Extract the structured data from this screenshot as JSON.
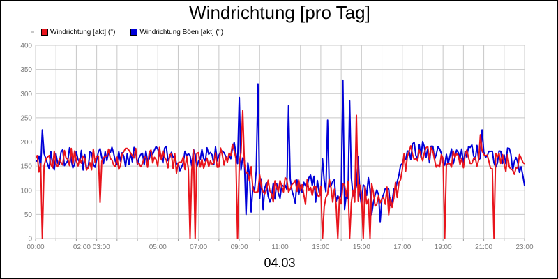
{
  "chart_data": {
    "type": "line",
    "title": "Windrichtung [pro Tag]",
    "date": "04.03",
    "xlabel": "",
    "ylabel": "",
    "ylim": [
      0,
      400
    ],
    "yticks": [
      "0",
      "50",
      "100",
      "150",
      "200",
      "250",
      "300",
      "350",
      "400"
    ],
    "xticks": [
      "00:00",
      "02:00 03:00",
      "05:00",
      "07:00",
      "09:00",
      "11:00",
      "13:00",
      "15:00",
      "17:00",
      "19:00",
      "21:00",
      "23:00"
    ],
    "grid": true,
    "legend_position": "top-left",
    "x_hours": [
      0,
      0.5,
      1,
      1.5,
      2,
      2.5,
      3,
      3.5,
      4,
      4.5,
      5,
      5.5,
      6,
      6.5,
      7,
      7.5,
      8,
      8.5,
      9,
      9.5,
      10,
      10.5,
      11,
      11.5,
      12,
      12.5,
      13,
      13.5,
      14,
      14.5,
      15,
      15.5,
      16,
      16.5,
      17,
      17.5,
      18,
      18.5,
      19,
      19.5,
      20,
      20.5,
      21,
      21.5,
      22,
      22.5,
      23,
      23.5,
      24
    ],
    "series": [
      {
        "name": "Windrichtung [akt] (°)",
        "color": "#e8141c",
        "values": [
          150,
          170,
          160,
          175,
          165,
          160,
          165,
          175,
          160,
          170,
          165,
          160,
          170,
          165,
          150,
          160,
          165,
          170,
          165,
          180,
          165,
          140,
          105,
          100,
          100,
          105,
          95,
          100,
          90,
          100,
          85,
          95,
          90,
          95,
          90,
          70,
          150,
          175,
          175,
          170,
          165,
          165,
          165,
          165,
          175,
          160,
          160,
          155,
          155
        ],
        "spikes": [
          {
            "x": 0.35,
            "y": 0
          },
          {
            "x": 3.2,
            "y": 75
          },
          {
            "x": 7.6,
            "y": 0
          },
          {
            "x": 7.85,
            "y": 0
          },
          {
            "x": 9.95,
            "y": 0
          },
          {
            "x": 10.15,
            "y": 265
          },
          {
            "x": 14.1,
            "y": 0
          },
          {
            "x": 14.8,
            "y": 0
          },
          {
            "x": 15.4,
            "y": 0
          },
          {
            "x": 15.75,
            "y": 255
          },
          {
            "x": 16.05,
            "y": 0
          },
          {
            "x": 16.4,
            "y": 0
          },
          {
            "x": 20.05,
            "y": 0
          },
          {
            "x": 21.85,
            "y": 215
          },
          {
            "x": 22.5,
            "y": 0
          }
        ]
      },
      {
        "name": "Windrichtung Böen [akt] (°)",
        "color": "#0000d8",
        "values": [
          145,
          165,
          160,
          170,
          165,
          160,
          165,
          180,
          160,
          170,
          165,
          160,
          175,
          170,
          155,
          165,
          170,
          175,
          165,
          185,
          170,
          130,
          110,
          95,
          95,
          110,
          90,
          105,
          95,
          110,
          90,
          100,
          95,
          100,
          85,
          75,
          155,
          180,
          185,
          175,
          170,
          170,
          170,
          175,
          185,
          165,
          170,
          160,
          115
        ],
        "spikes": [
          {
            "x": 0.3,
            "y": 225
          },
          {
            "x": 10.0,
            "y": 292
          },
          {
            "x": 10.3,
            "y": 50
          },
          {
            "x": 10.6,
            "y": 55
          },
          {
            "x": 10.95,
            "y": 320
          },
          {
            "x": 11.2,
            "y": 60
          },
          {
            "x": 12.45,
            "y": 275
          },
          {
            "x": 14.35,
            "y": 245
          },
          {
            "x": 14.1,
            "y": 165
          },
          {
            "x": 15.05,
            "y": 328
          },
          {
            "x": 15.4,
            "y": 285
          },
          {
            "x": 15.15,
            "y": 60
          },
          {
            "x": 15.85,
            "y": 170
          },
          {
            "x": 16.5,
            "y": 50
          },
          {
            "x": 16.95,
            "y": 35
          },
          {
            "x": 21.9,
            "y": 225
          }
        ]
      }
    ]
  },
  "legend_marker_color": "#c8c8c8"
}
